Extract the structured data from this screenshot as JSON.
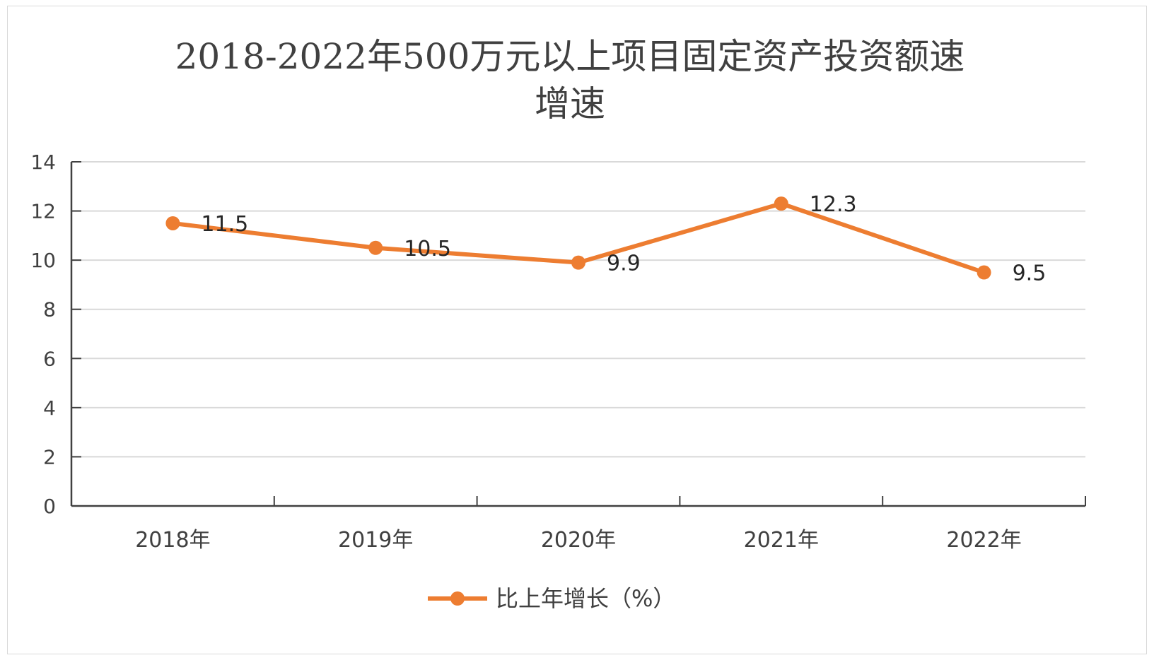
{
  "chart_data": {
    "type": "line",
    "title": "2018-2022年500万元以上项目固定资产投资额速增速",
    "title_lines": [
      "2018-2022年500万元以上项目固定资产投资额速",
      "增速"
    ],
    "xlabel": "",
    "ylabel": "",
    "categories": [
      "2018年",
      "2019年",
      "2020年",
      "2021年",
      "2022年"
    ],
    "series": [
      {
        "name": "比上年增长（%）",
        "values": [
          11.5,
          10.5,
          9.9,
          12.3,
          9.5
        ],
        "labels": [
          "11.5",
          "10.5",
          "9.9",
          "12.3",
          "9.5"
        ],
        "color": "#ed7d31"
      }
    ],
    "ylim": [
      0,
      14
    ],
    "yticks": [
      0,
      2,
      4,
      6,
      8,
      10,
      12,
      14
    ],
    "ytick_labels": [
      "0",
      "2",
      "4",
      "6",
      "8",
      "10",
      "12",
      "14"
    ],
    "grid": true,
    "legend_position": "bottom",
    "colors": {
      "grid": "#d9d9d9",
      "axis": "#404040",
      "line": "#ed7d31"
    }
  }
}
